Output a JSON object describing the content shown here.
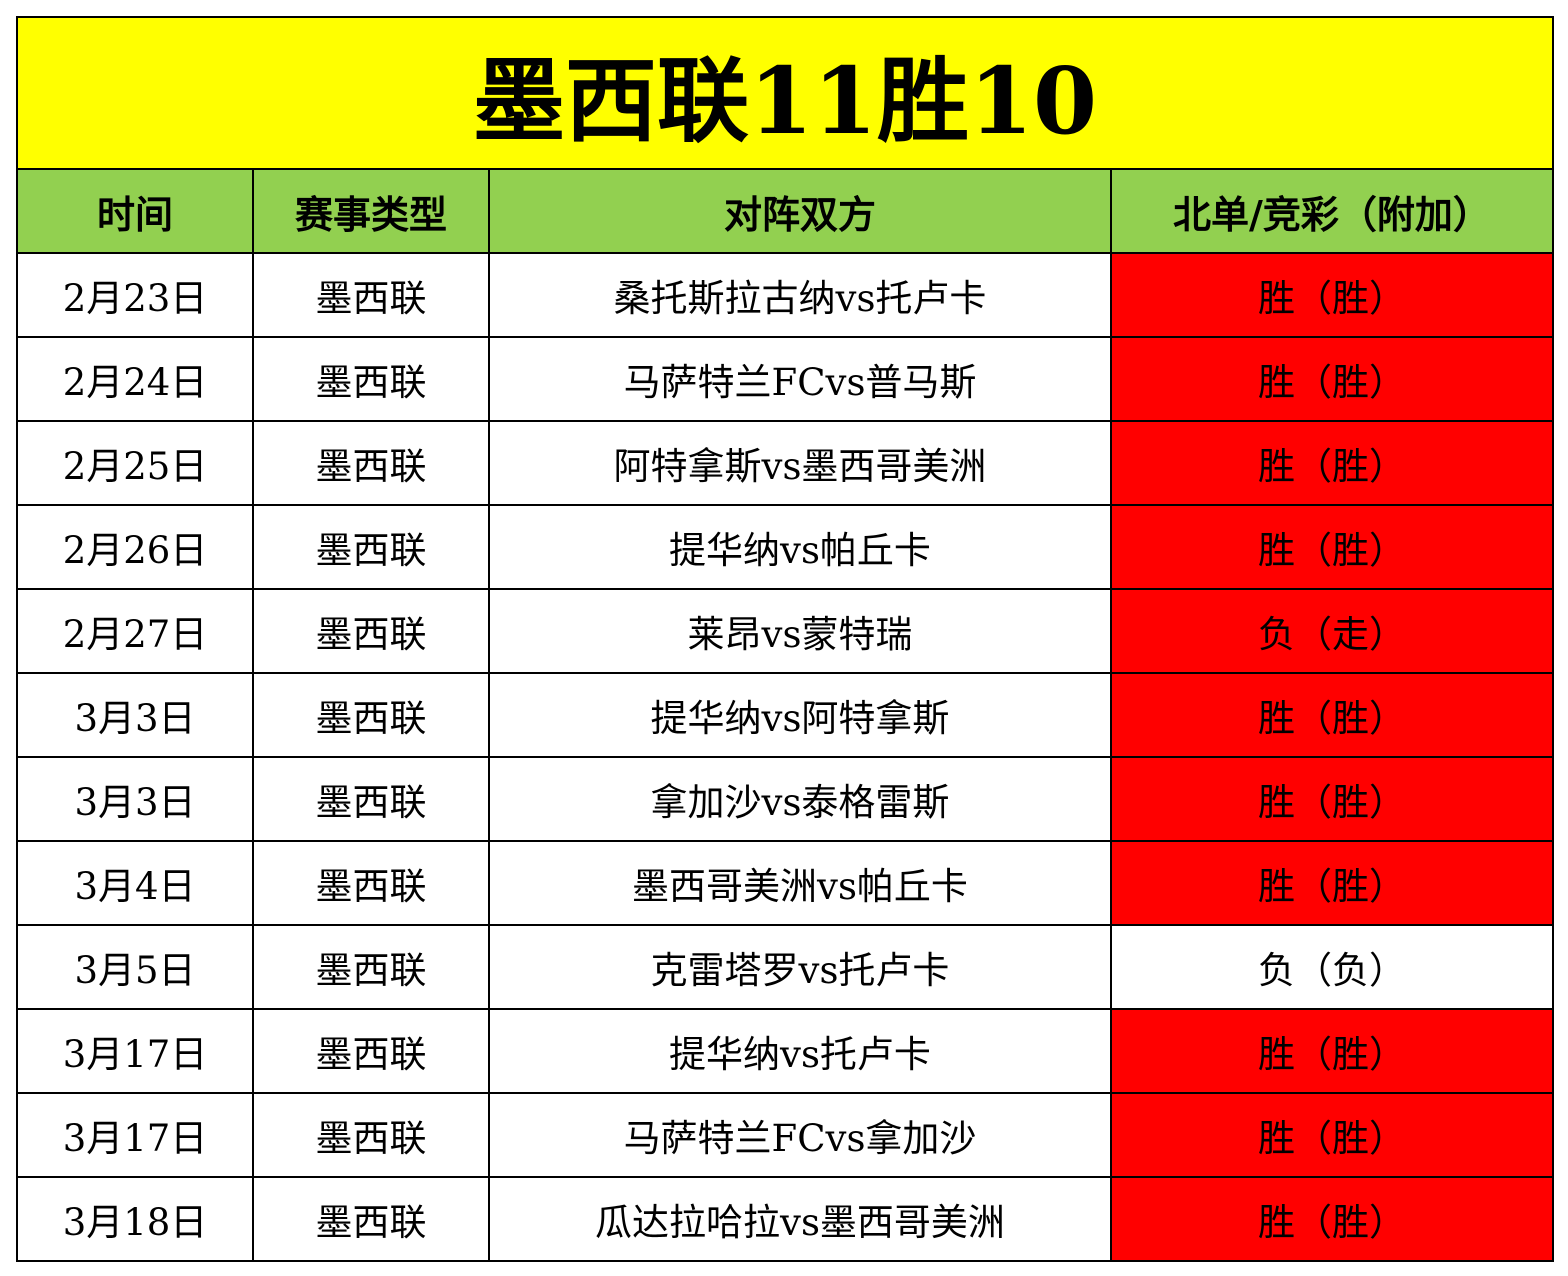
{
  "title": "墨西联11胜10",
  "colors": {
    "title_bg": "#ffff00",
    "header_bg": "#92d050",
    "highlight_bg": "#ff0000",
    "plain_bg": "#ffffff"
  },
  "headers": [
    "时间",
    "赛事类型",
    "对阵双方",
    "北单/竞彩（附加）"
  ],
  "rows": [
    {
      "date": "2月23日",
      "league": "墨西联",
      "match": "桑托斯拉古纳vs托卢卡",
      "result": "胜（胜）",
      "highlight": true
    },
    {
      "date": "2月24日",
      "league": "墨西联",
      "match": "马萨特兰FCvs普马斯",
      "result": "胜（胜）",
      "highlight": true
    },
    {
      "date": "2月25日",
      "league": "墨西联",
      "match": "阿特拿斯vs墨西哥美洲",
      "result": "胜（胜）",
      "highlight": true
    },
    {
      "date": "2月26日",
      "league": "墨西联",
      "match": "提华纳vs帕丘卡",
      "result": "胜（胜）",
      "highlight": true
    },
    {
      "date": "2月27日",
      "league": "墨西联",
      "match": "莱昂vs蒙特瑞",
      "result": "负（走）",
      "highlight": true
    },
    {
      "date": "3月3日",
      "league": "墨西联",
      "match": "提华纳vs阿特拿斯",
      "result": "胜（胜）",
      "highlight": true
    },
    {
      "date": "3月3日",
      "league": "墨西联",
      "match": "拿加沙vs泰格雷斯",
      "result": "胜（胜）",
      "highlight": true
    },
    {
      "date": "3月4日",
      "league": "墨西联",
      "match": "墨西哥美洲vs帕丘卡",
      "result": "胜（胜）",
      "highlight": true
    },
    {
      "date": "3月5日",
      "league": "墨西联",
      "match": "克雷塔罗vs托卢卡",
      "result": "负（负）",
      "highlight": false
    },
    {
      "date": "3月17日",
      "league": "墨西联",
      "match": "提华纳vs托卢卡",
      "result": "胜（胜）",
      "highlight": true
    },
    {
      "date": "3月17日",
      "league": "墨西联",
      "match": "马萨特兰FCvs拿加沙",
      "result": "胜（胜）",
      "highlight": true
    },
    {
      "date": "3月18日",
      "league": "墨西联",
      "match": "瓜达拉哈拉vs墨西哥美洲",
      "result": "胜（胜）",
      "highlight": true
    }
  ]
}
